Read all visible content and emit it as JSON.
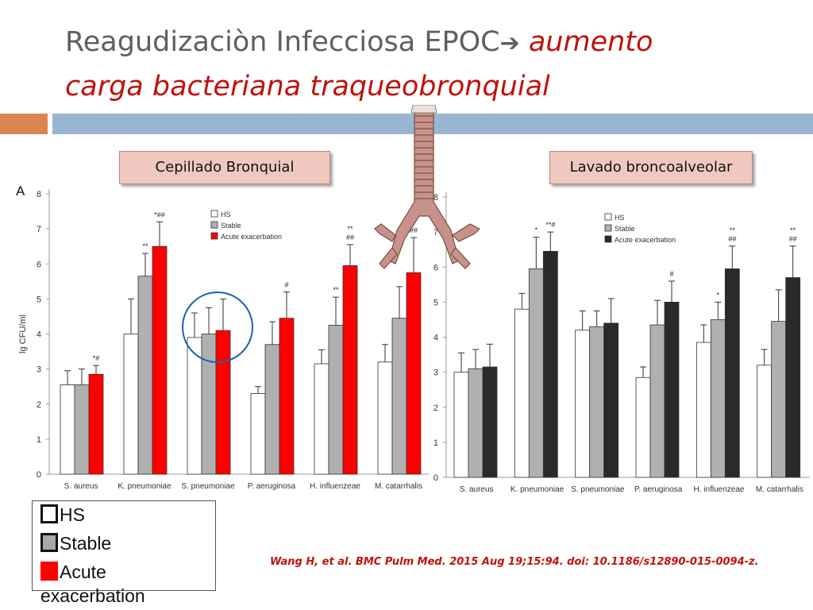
{
  "title": {
    "plain": "Reagudizaciòn Infecciosa EPOC",
    "arrow": "➔",
    "accent_line1": " aumento",
    "accent_line2": "carga bacteriana traqueobronquial"
  },
  "labels": {
    "left_box": "Cepillado Bronquial",
    "right_box": "Lavado broncoalveolar"
  },
  "legend_box": [
    {
      "label": "HS",
      "color": "#ffffff"
    },
    {
      "label": "Stable",
      "color": "#a8a8a8"
    },
    {
      "label": "Acute exacerbation",
      "color": "#ff0000"
    }
  ],
  "citation": "Wang H, et al. BMC Pulm Med. 2015 Aug 19;15:94. doi: 10.1186/s12890-015-0094-z.",
  "colors": {
    "hs": "#ffffff",
    "stable": "#b0b0b0",
    "acute_left": "#ff0000",
    "acute_right": "#2a2a2a",
    "title_accent": "#c0120c",
    "circle": "#1f5fb0"
  },
  "chart_data": [
    {
      "type": "bar",
      "panel_label": "A",
      "ylabel": "lg CFU/ml",
      "ylim": [
        0,
        8
      ],
      "yticks": [
        0,
        1,
        2,
        3,
        4,
        5,
        6,
        7,
        8
      ],
      "categories": [
        "S. aureus",
        "K. pneumoniae",
        "S. pneumoniae",
        "P. aeruginosa",
        "H. influenzeae",
        "M. catarrhalis"
      ],
      "series": [
        {
          "name": "HS",
          "values": [
            2.55,
            4.0,
            3.9,
            2.3,
            3.15,
            3.2
          ],
          "errors": [
            0.4,
            1.0,
            0.7,
            0.2,
            0.4,
            0.5
          ]
        },
        {
          "name": "Stable",
          "values": [
            2.55,
            5.65,
            4.0,
            3.7,
            4.25,
            4.45
          ],
          "errors": [
            0.45,
            0.65,
            0.75,
            0.65,
            0.8,
            0.9
          ]
        },
        {
          "name": "Acute exacerbation",
          "values": [
            2.85,
            6.5,
            4.1,
            4.45,
            5.95,
            5.75
          ],
          "errors": [
            0.25,
            0.7,
            0.9,
            0.75,
            0.6,
            1.0
          ]
        }
      ],
      "annotations": [
        {
          "category": "S. aureus",
          "text": "*#"
        },
        {
          "category": "K. pneumoniae",
          "text": "**",
          "series": "Stable"
        },
        {
          "category": "K. pneumoniae",
          "text": "*##"
        },
        {
          "category": "P. aeruginosa",
          "text": "#"
        },
        {
          "category": "H. influenzeae",
          "text": "**",
          "series": "Stable"
        },
        {
          "category": "H. influenzeae",
          "text": "**\n##"
        },
        {
          "category": "M. catarrhalis",
          "text": "##"
        }
      ],
      "legend": {
        "position": "top-center",
        "entries": [
          "HS",
          "Stable",
          "Acute exacerbation"
        ]
      },
      "grid": false
    },
    {
      "type": "bar",
      "ylim": [
        0,
        8
      ],
      "yticks": [
        0,
        1,
        2,
        3,
        4,
        5,
        6,
        7,
        8
      ],
      "categories": [
        "S. aureus",
        "K. pneumoniae",
        "S. pneumoniae",
        "P. aeruginosa",
        "H. influenzeae",
        "M. catarrhalis"
      ],
      "series": [
        {
          "name": "HS",
          "values": [
            3.0,
            4.8,
            4.2,
            2.85,
            3.85,
            3.2
          ],
          "errors": [
            0.55,
            0.45,
            0.55,
            0.3,
            0.5,
            0.45
          ]
        },
        {
          "name": "Stable",
          "values": [
            3.1,
            5.95,
            4.3,
            4.35,
            4.5,
            4.45
          ],
          "errors": [
            0.55,
            0.9,
            0.45,
            0.7,
            0.5,
            0.9
          ]
        },
        {
          "name": "Acute exacerbation",
          "values": [
            3.15,
            6.45,
            4.4,
            5.0,
            5.95,
            5.7
          ],
          "errors": [
            0.65,
            0.55,
            0.7,
            0.6,
            0.65,
            0.9
          ]
        }
      ],
      "annotations": [
        {
          "category": "K. pneumoniae",
          "text": "*",
          "series": "Stable"
        },
        {
          "category": "K. pneumoniae",
          "text": "**#"
        },
        {
          "category": "P. aeruginosa",
          "text": "#"
        },
        {
          "category": "H. influenzeae",
          "text": "*",
          "series": "Stable"
        },
        {
          "category": "H. influenzeae",
          "text": "**\n##"
        },
        {
          "category": "M. catarrhalis",
          "text": "**\n##"
        }
      ],
      "legend": {
        "position": "top-center",
        "entries": [
          "HS",
          "Stable",
          "Acute exacerbation"
        ]
      },
      "grid": false
    }
  ]
}
